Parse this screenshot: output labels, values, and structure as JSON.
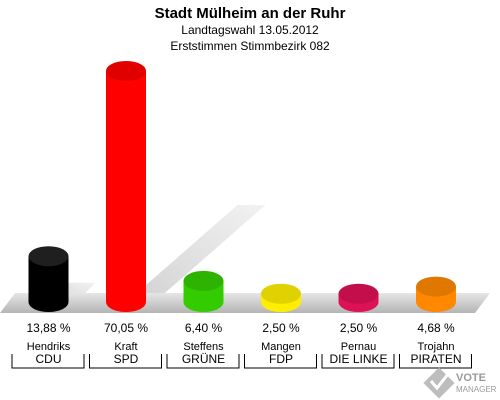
{
  "chart_data": {
    "type": "bar",
    "title": "Stadt Mülheim an der Ruhr",
    "subtitle": "Landtagswahl 13.05.2012",
    "subtitle2": "Erststimmen Stimmbezirk 082",
    "categories": [
      "CDU",
      "SPD",
      "GRÜNE",
      "FDP",
      "DIE LINKE",
      "PIRATEN"
    ],
    "candidates": [
      "Hendriks",
      "Kraft",
      "Steffens",
      "Mangen",
      "Pernau",
      "Trojahn"
    ],
    "values": [
      13.88,
      70.05,
      6.4,
      2.5,
      2.5,
      4.68
    ],
    "value_labels": [
      "13,88 %",
      "70,05 %",
      "6,40 %",
      "2,50 %",
      "2,50 %",
      "4,68 %"
    ],
    "colors": [
      "#000000",
      "#ff0000",
      "#33cc00",
      "#ffee00",
      "#dd1155",
      "#ff8800"
    ],
    "ylim": [
      0,
      70.05
    ],
    "grid": false,
    "legend": "none"
  },
  "logo": {
    "text": "VOTE MANAGER"
  }
}
